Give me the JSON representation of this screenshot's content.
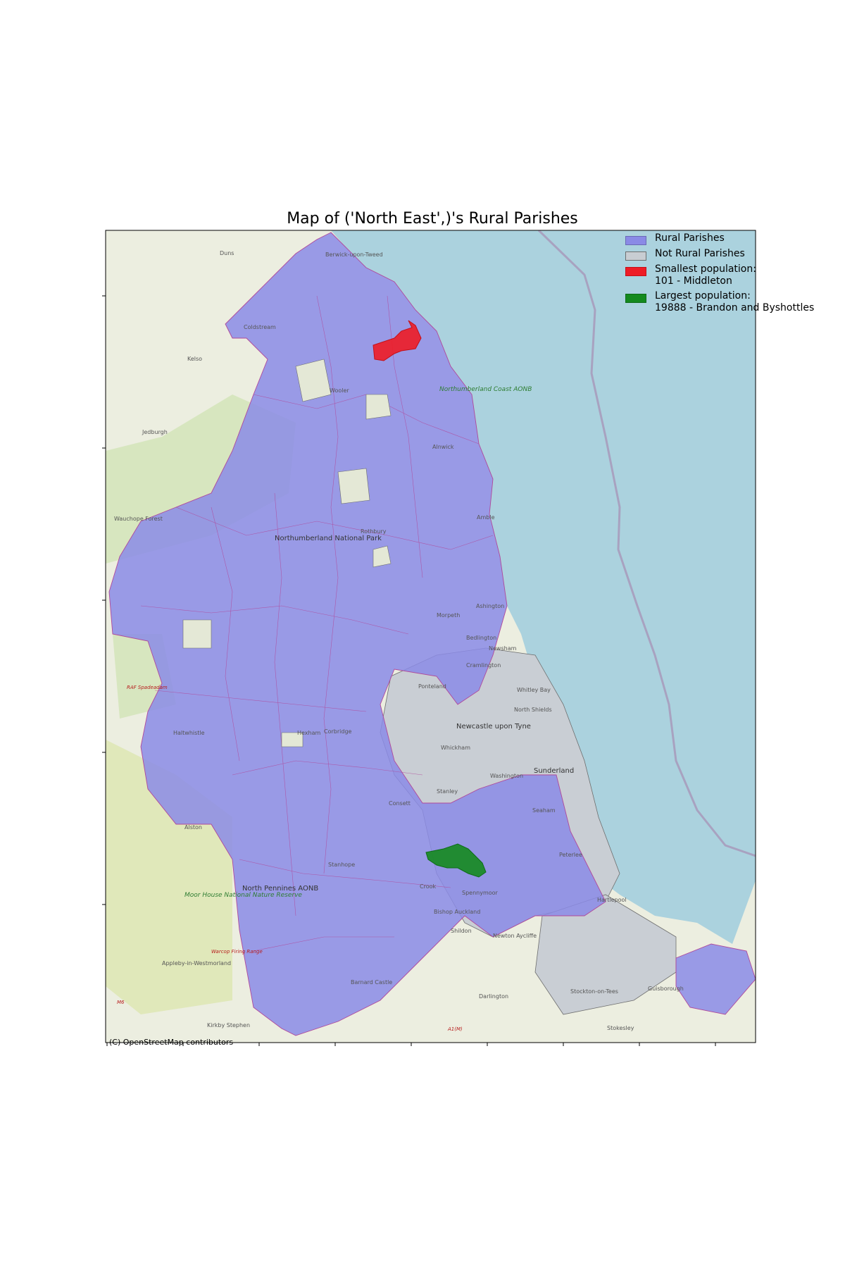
{
  "title": "Map of ('North East',)'s Rural Parishes",
  "attribution": "(C) OpenStreetMap contributors",
  "colors": {
    "rural": "#8a8ae6",
    "not_rural": "#c8cdd2",
    "smallest": "#ee1c25",
    "largest": "#148a1e",
    "sea": "#aad3df",
    "land": "#e8ecd8"
  },
  "legend": [
    {
      "label": "Rural Parishes",
      "color": "#8a8ae6"
    },
    {
      "label": "Not Rural Parishes",
      "color": "#c8cdd2"
    },
    {
      "label": "Smallest population:\n101 - Middleton",
      "color": "#ee1c25"
    },
    {
      "label": "Largest population:\n19888 - Brandon and Byshottles",
      "color": "#148a1e"
    }
  ],
  "place_labels": {
    "duns": "Duns",
    "berwick": "Berwick-upon-Tweed",
    "coldstream": "Coldstream",
    "kelso": "Kelso",
    "wooler": "Wooler",
    "jedburgh": "Jedburgh",
    "alnwick": "Alnwick",
    "amble": "Amble",
    "rothbury": "Rothbury",
    "northumberland_coast": "Northumberland Coast AONB",
    "national_park": "Northumberland National Park",
    "wauchope": "Wauchope Forest",
    "raf": "RAF Spadeadam",
    "haltwhistle": "Haltwhistle",
    "hexham": "Hexham",
    "corbridge": "Corbridge",
    "morpeth": "Morpeth",
    "ashington": "Ashington",
    "bedlington": "Bedlington",
    "newsham": "Newsham",
    "cramlington": "Cramlington",
    "ponteland": "Ponteland",
    "whitley_bay": "Whitley Bay",
    "north_shields": "North Shields",
    "newcastle": "Newcastle upon Tyne",
    "whickham": "Whickham",
    "washington": "Washington",
    "sunderland": "Sunderland",
    "stanley": "Stanley",
    "consett": "Consett",
    "alston": "Alston",
    "stanhope": "Stanhope",
    "north_pennines": "North Pennines AONB",
    "moor_house": "Moor House National Nature Reserve",
    "warcop": "Warcop Firing Range",
    "appleby": "Appleby-in-Westmorland",
    "crook": "Crook",
    "spennymoor": "Spennymoor",
    "bishop_auckland": "Bishop Auckland",
    "shildon": "Shildon",
    "newton_aycliffe": "Newton Aycliffe",
    "barnard_castle": "Barnard Castle",
    "darlington": "Darlington",
    "hartlepool": "Hartlepool",
    "peterlee": "Peterlee",
    "seaham": "Seaham",
    "stockton": "Stockton-on-Tees",
    "guisborough": "Guisborough",
    "kirkby_stephen": "Kirkby Stephen",
    "stokesley": "Stokesley",
    "m6": "M6",
    "a1m": "A1(M)"
  }
}
